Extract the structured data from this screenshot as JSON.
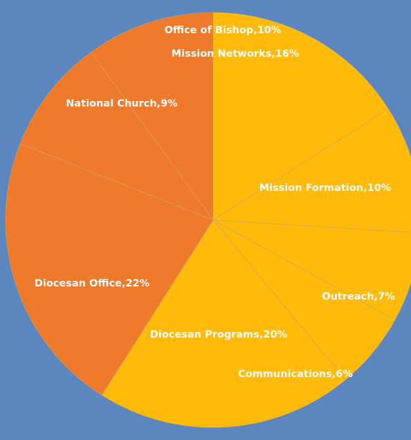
{
  "colors": {
    "background": "#5b86be",
    "orange": "#f07a2c",
    "gold": "#ffba0a"
  },
  "chart_data": {
    "type": "pie",
    "title": "",
    "start_angle_deg": 0,
    "direction": "clockwise",
    "legend": "none",
    "slices": [
      {
        "label": "Mission Networks",
        "value": 16,
        "text": "Mission Networks,16%",
        "color": "#ffba0a"
      },
      {
        "label": "Mission Formation",
        "value": 10,
        "text": "Mission Formation,10%",
        "color": "#ffba0a"
      },
      {
        "label": "Outreach",
        "value": 7,
        "text": "Outreach,7%",
        "color": "#ffba0a"
      },
      {
        "label": "Communications",
        "value": 6,
        "text": "Communications,6%",
        "color": "#ffba0a"
      },
      {
        "label": "Diocesan Programs",
        "value": 20,
        "text": "Diocesan Programs,20%",
        "color": "#ffba0a"
      },
      {
        "label": "Diocesan Office",
        "value": 22,
        "text": "Diocesan Office,22%",
        "color": "#f07a2c"
      },
      {
        "label": "National Church",
        "value": 9,
        "text": "National Church,9%",
        "color": "#f07a2c"
      },
      {
        "label": "Office of Bishop",
        "value": 10,
        "text": "Office of Bishop,10%",
        "color": "#f07a2c"
      }
    ]
  }
}
